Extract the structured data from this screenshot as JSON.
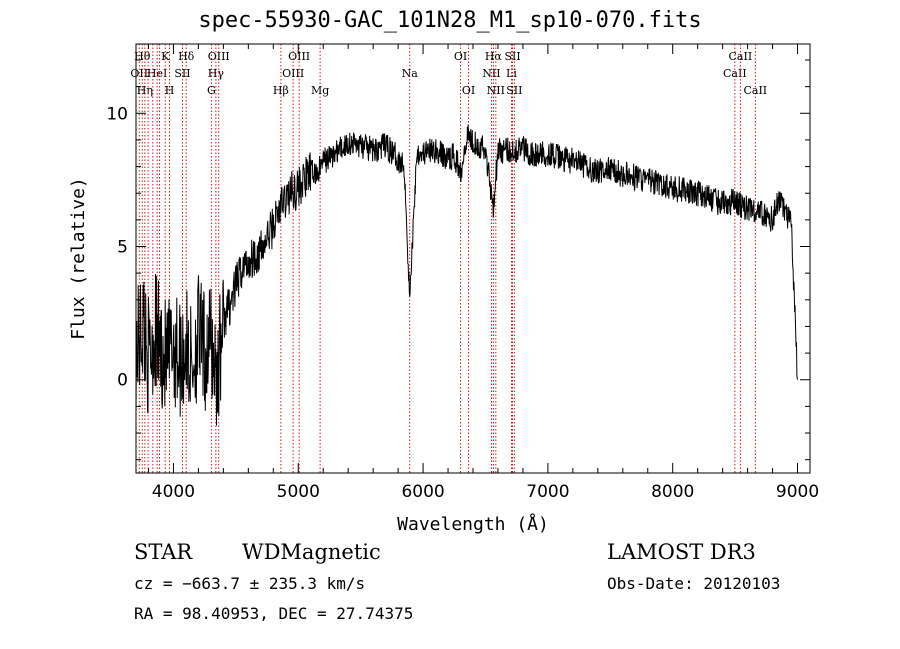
{
  "chart_data": {
    "type": "line",
    "title": "spec-55930-GAC_101N28_M1_sp10-070.fits",
    "xlabel": "Wavelength (Å)",
    "ylabel": "Flux (relative)",
    "xlim": [
      3700,
      9100
    ],
    "ylim": [
      -3.5,
      12.6
    ],
    "xticks": [
      4000,
      5000,
      6000,
      7000,
      8000,
      9000
    ],
    "xtick_labels": [
      "4000",
      "5000",
      "6000",
      "7000",
      "8000",
      "9000"
    ],
    "yticks": [
      0,
      5,
      10
    ],
    "ytick_labels": [
      "0",
      "5",
      "10"
    ],
    "grid": false,
    "series": [
      {
        "name": "flux",
        "x": [
          3700,
          3760,
          3800,
          3850,
          3900,
          3950,
          4000,
          4050,
          4100,
          4150,
          4200,
          4250,
          4300,
          4350,
          4400,
          4450,
          4500,
          4550,
          4600,
          4650,
          4700,
          4750,
          4800,
          4850,
          4900,
          4950,
          5000,
          5050,
          5100,
          5150,
          5200,
          5300,
          5400,
          5500,
          5600,
          5700,
          5800,
          5850,
          5893,
          5950,
          6000,
          6100,
          6200,
          6250,
          6300,
          6350,
          6400,
          6500,
          6563,
          6600,
          6700,
          6800,
          6900,
          7000,
          7100,
          7200,
          7300,
          7400,
          7500,
          7600,
          7700,
          7800,
          7900,
          8000,
          8100,
          8200,
          8300,
          8400,
          8500,
          8600,
          8700,
          8800,
          8850,
          8900,
          8950,
          9000
        ],
        "y": [
          1.0,
          2.2,
          0.8,
          1.8,
          1.2,
          0.6,
          1.4,
          0.8,
          1.2,
          0.5,
          1.8,
          0.9,
          1.4,
          0.2,
          2.2,
          2.8,
          3.5,
          4.2,
          4.4,
          4.7,
          4.8,
          5.3,
          5.8,
          6.4,
          6.8,
          7.1,
          7.2,
          7.5,
          7.8,
          7.7,
          8.2,
          8.5,
          8.9,
          8.8,
          8.6,
          8.8,
          8.3,
          8.0,
          3.0,
          8.6,
          8.5,
          8.6,
          8.3,
          8.4,
          7.8,
          9.2,
          9.0,
          8.6,
          6.5,
          8.6,
          8.6,
          8.7,
          8.4,
          8.5,
          8.3,
          8.2,
          8.0,
          7.8,
          7.9,
          7.7,
          7.6,
          7.5,
          7.3,
          7.2,
          7.1,
          7.0,
          6.8,
          6.6,
          6.7,
          6.4,
          6.3,
          6.0,
          6.8,
          6.3,
          5.8,
          0.0
        ]
      }
    ],
    "line_markers": [
      {
        "wl": 3726,
        "label": "OII",
        "row": 1
      },
      {
        "wl": 3750,
        "label": "Hθ",
        "row": 0
      },
      {
        "wl": 3771,
        "label": "Hη",
        "row": 2
      },
      {
        "wl": 3797,
        "label": "",
        "row": 2
      },
      {
        "wl": 3835,
        "label": "",
        "row": 1
      },
      {
        "wl": 3869,
        "label": "HeI",
        "row": 1
      },
      {
        "wl": 3889,
        "label": "",
        "row": 2
      },
      {
        "wl": 3934,
        "label": "K",
        "row": 0
      },
      {
        "wl": 3969,
        "label": "H",
        "row": 2
      },
      {
        "wl": 4072,
        "label": "SII",
        "row": 1
      },
      {
        "wl": 4102,
        "label": "Hδ",
        "row": 0
      },
      {
        "wl": 4304,
        "label": "G",
        "row": 2
      },
      {
        "wl": 4340,
        "label": "Hγ",
        "row": 1
      },
      {
        "wl": 4363,
        "label": "OIII",
        "row": 0
      },
      {
        "wl": 4861,
        "label": "Hβ",
        "row": 2
      },
      {
        "wl": 4959,
        "label": "OIII",
        "row": 1
      },
      {
        "wl": 5007,
        "label": "OIII",
        "row": 0
      },
      {
        "wl": 5175,
        "label": "Mg",
        "row": 2
      },
      {
        "wl": 5893,
        "label": "Na",
        "row": 1
      },
      {
        "wl": 6300,
        "label": "OI",
        "row": 0
      },
      {
        "wl": 6364,
        "label": "OI",
        "row": 2
      },
      {
        "wl": 6548,
        "label": "NII",
        "row": 1
      },
      {
        "wl": 6563,
        "label": "Hα",
        "row": 0
      },
      {
        "wl": 6583,
        "label": "NII",
        "row": 2
      },
      {
        "wl": 6708,
        "label": "Li",
        "row": 1
      },
      {
        "wl": 6717,
        "label": "SII",
        "row": 0
      },
      {
        "wl": 6731,
        "label": "SII",
        "row": 2
      },
      {
        "wl": 8498,
        "label": "CaII",
        "row": 1
      },
      {
        "wl": 8542,
        "label": "CaII",
        "row": 0
      },
      {
        "wl": 8662,
        "label": "CaII",
        "row": 2
      }
    ]
  },
  "info": {
    "class": "STAR",
    "subclass": "WDMagnetic",
    "survey": "LAMOST DR3",
    "cz": "cz = −663.7 ± 235.3 km/s",
    "obs_date": "Obs-Date: 20120103",
    "radec": "RA =  98.40953, DEC =  27.74375"
  }
}
